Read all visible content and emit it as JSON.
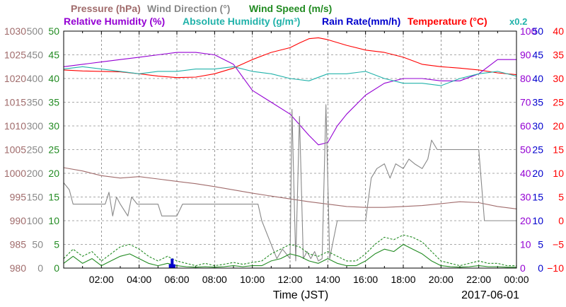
{
  "chart_data": {
    "type": "line",
    "date_label": "2017-06-01",
    "xlabel": "Time (JST)",
    "x_tick_labels": [
      "02:00",
      "04:00",
      "06:00",
      "08:00",
      "10:00",
      "12:00",
      "14:00",
      "16:00",
      "18:00",
      "20:00",
      "22:00",
      "00:00"
    ],
    "x_range_hours": [
      0,
      24
    ],
    "legend_line1": [
      {
        "text": "Pressure (hPa)",
        "color": "#a06b6b"
      },
      {
        "text": "Wind Direction (°)",
        "color": "#888888"
      },
      {
        "text": "Wind Speed (m/s)",
        "color": "#228b22"
      }
    ],
    "legend_line2": [
      {
        "text": "Relative Humidity (%)",
        "color": "#9400d3"
      },
      {
        "text": "Absolute Humidity (g/m³)",
        "color": "#20b2aa"
      },
      {
        "text": "Rain Rate(mm/h)",
        "color": "#0000cd"
      },
      {
        "text": "Temperature (°C)",
        "color": "#ff0000"
      },
      {
        "text": "x0.2",
        "color": "#20b2aa"
      }
    ],
    "axes": {
      "pressure": {
        "color": "#a06b6b",
        "range": [
          980,
          1030
        ],
        "ticks": [
          "980",
          "985",
          "990",
          "995",
          "1000",
          "1005",
          "1010",
          "1015",
          "1020",
          "1025",
          "1030"
        ]
      },
      "wind_direction": {
        "color": "#888888",
        "range": [
          0,
          500
        ],
        "ticks": [
          "0",
          "50",
          "100",
          "150",
          "200",
          "250",
          "300",
          "350",
          "400",
          "450",
          "500"
        ]
      },
      "wind_speed": {
        "color": "#228b22",
        "range": [
          0,
          50
        ],
        "ticks": [
          "0",
          "5",
          "10",
          "15",
          "20",
          "25",
          "30",
          "35",
          "40",
          "45",
          "50"
        ]
      },
      "relative_humidity": {
        "color": "#9400d3",
        "range": [
          0,
          100
        ],
        "ticks": [
          "0",
          "10",
          "20",
          "30",
          "40",
          "50",
          "60",
          "70",
          "80",
          "90",
          "100"
        ]
      },
      "rain_rate": {
        "color": "#0000cd",
        "range": [
          0,
          50
        ],
        "ticks": [
          "0",
          "5",
          "10",
          "15",
          "20",
          "25",
          "30",
          "35",
          "40",
          "45",
          "50"
        ]
      },
      "temperature": {
        "color": "#ff0000",
        "range": [
          -10,
          40
        ],
        "ticks": [
          "−10",
          "−5",
          "0",
          "5",
          "10",
          "15",
          "20",
          "25",
          "30",
          "35",
          "40"
        ]
      }
    },
    "grid": true,
    "series": [
      {
        "name": "Temperature (°C)",
        "color": "#ff0000",
        "axis": "temperature",
        "x": [
          0,
          1,
          2,
          3,
          4,
          5,
          6,
          7,
          8,
          9,
          10,
          11,
          12,
          12.5,
          13,
          13.5,
          14,
          15,
          16,
          17,
          18,
          19,
          20,
          21,
          22,
          23,
          24
        ],
        "y": [
          31.8,
          31.6,
          31.5,
          31.4,
          31.0,
          30.5,
          30.2,
          30.3,
          31.0,
          32.2,
          34.0,
          35.5,
          36.5,
          37.5,
          38.4,
          38.6,
          38.2,
          37.0,
          36.0,
          35.5,
          34.5,
          33.0,
          32.5,
          32.2,
          31.8,
          31.2,
          30.8
        ]
      },
      {
        "name": "Relative Humidity (%)",
        "color": "#9400d3",
        "axis": "relative_humidity",
        "x": [
          0,
          1,
          2,
          3,
          4,
          5,
          6,
          7,
          8,
          9,
          10,
          11,
          12,
          13,
          13.5,
          14,
          14.5,
          15,
          16,
          17,
          18,
          19,
          20,
          21,
          22,
          23,
          24
        ],
        "y": [
          85,
          86,
          87,
          88,
          89,
          90,
          91,
          91,
          90,
          86,
          75,
          70,
          65,
          56,
          52,
          53,
          60,
          65,
          73,
          78,
          80,
          80,
          79,
          79,
          82,
          88,
          88
        ]
      },
      {
        "name": "Absolute Humidity (g/m³)",
        "color": "#20b2aa",
        "axis": "wind_speed",
        "x": [
          0,
          1,
          2,
          3,
          4,
          5,
          6,
          7,
          8,
          9,
          10,
          11,
          12,
          13,
          14,
          15,
          16,
          17,
          18,
          19,
          20,
          21,
          22,
          23,
          24
        ],
        "y": [
          42.0,
          42.5,
          42.0,
          41.5,
          41.0,
          41.5,
          41.5,
          42.0,
          42.0,
          42.5,
          41.5,
          41.0,
          40.0,
          39.5,
          41.0,
          41.0,
          41.5,
          40.0,
          39.0,
          39.0,
          38.5,
          40.0,
          41.0,
          41.5,
          40.5
        ]
      },
      {
        "name": "Pressure (hPa)",
        "color": "#a06b6b",
        "axis": "pressure",
        "x": [
          0,
          1,
          2,
          3,
          4,
          5,
          6,
          7,
          8,
          9,
          10,
          11,
          12,
          13,
          14,
          15,
          16,
          17,
          18,
          19,
          20,
          21,
          22,
          23,
          24
        ],
        "y": [
          1001.2,
          1000.5,
          999.5,
          999.0,
          999.3,
          998.8,
          998.3,
          997.8,
          997.2,
          996.5,
          995.8,
          995.2,
          994.6,
          994.0,
          993.5,
          993.0,
          992.8,
          992.8,
          993.0,
          993.2,
          993.6,
          994.0,
          993.8,
          993.0,
          992.5
        ]
      },
      {
        "name": "Wind Direction (°)",
        "color": "#888888",
        "axis": "wind_direction",
        "x": [
          0,
          0.3,
          0.5,
          1.2,
          2.2,
          2.4,
          2.6,
          2.8,
          3.0,
          3.4,
          3.6,
          3.9,
          4.1,
          5.0,
          5.2,
          6.0,
          6.3,
          10.3,
          10.5,
          11.0,
          11.3,
          11.6,
          12.0,
          12.1,
          12.3,
          12.5,
          12.7,
          12.9,
          13.1,
          13.3,
          13.5,
          13.7,
          13.9,
          14.1,
          14.3,
          14.5,
          14.8,
          16.0,
          16.3,
          16.6,
          17.0,
          17.3,
          17.6,
          18.0,
          18.3,
          18.6,
          19.0,
          19.3,
          19.5,
          19.8,
          20.0,
          21.0,
          22.0,
          22.3,
          22.6,
          23.0,
          24.0
        ],
        "y": [
          180,
          165,
          135,
          135,
          135,
          160,
          110,
          150,
          135,
          110,
          150,
          135,
          135,
          135,
          110,
          110,
          135,
          135,
          100,
          50,
          20,
          40,
          20,
          335,
          15,
          320,
          20,
          35,
          20,
          35,
          15,
          20,
          345,
          20,
          60,
          100,
          100,
          100,
          190,
          210,
          220,
          190,
          220,
          210,
          230,
          220,
          210,
          230,
          270,
          250,
          250,
          250,
          250,
          100,
          100,
          100,
          100
        ]
      },
      {
        "name": "Wind Speed (m/s)",
        "color": "#228b22",
        "axis": "wind_speed",
        "x": [
          0,
          0.5,
          1,
          1.5,
          2,
          2.5,
          3,
          3.5,
          4,
          4.5,
          5,
          5.5,
          6,
          6.5,
          7,
          7.5,
          8,
          8.5,
          9,
          9.5,
          10,
          10.5,
          11,
          11.5,
          12,
          12.5,
          13,
          13.5,
          14,
          14.5,
          15,
          15.5,
          16,
          16.5,
          17,
          17.5,
          18,
          18.5,
          19,
          19.5,
          20,
          20.5,
          21,
          21.5,
          22,
          22.5,
          23,
          23.5,
          24
        ],
        "y": [
          1,
          2.5,
          1,
          2,
          0.5,
          1.5,
          2.5,
          3,
          2,
          1,
          0.5,
          1,
          0.5,
          0.3,
          0.2,
          0.3,
          0.2,
          0.3,
          0.5,
          0.3,
          0.5,
          0.5,
          1.5,
          2,
          3,
          2.5,
          1.5,
          1,
          2,
          1,
          0.5,
          0.5,
          1.5,
          3,
          4,
          3.5,
          5,
          4,
          3,
          1.5,
          0.5,
          0.3,
          0.2,
          0.3,
          0.5,
          0.3,
          0.3,
          0.2,
          0.2
        ]
      },
      {
        "name": "Wind Speed gust (m/s)",
        "color": "#228b22",
        "axis": "wind_speed",
        "dashed": true,
        "x": [
          0,
          0.5,
          1,
          1.5,
          2,
          2.5,
          3,
          3.5,
          4,
          4.5,
          5,
          5.5,
          6,
          6.5,
          7,
          7.5,
          8,
          8.5,
          9,
          9.5,
          10,
          10.5,
          11,
          11.5,
          12,
          12.5,
          13,
          13.5,
          14,
          14.5,
          15,
          15.5,
          16,
          16.5,
          17,
          17.5,
          18,
          18.5,
          19,
          19.5,
          20,
          20.5,
          21,
          21.5,
          22,
          22.5,
          23,
          23.5,
          24
        ],
        "y": [
          2,
          4,
          2.5,
          3.5,
          1.5,
          3,
          4.5,
          5,
          4,
          2.5,
          1.5,
          2.5,
          1.5,
          1,
          0.5,
          1,
          0.5,
          0.8,
          1.2,
          0.8,
          1.2,
          1.5,
          3,
          4,
          5,
          4.5,
          3,
          2.5,
          3.5,
          2.5,
          1.5,
          1.5,
          3,
          5,
          6.5,
          6,
          7,
          6.5,
          5.5,
          3.5,
          1.5,
          1,
          0.5,
          1,
          1.5,
          1,
          1,
          0.5,
          0.5
        ]
      },
      {
        "name": "Rain Rate(mm/h)",
        "color": "#0000cd",
        "axis": "rain_rate",
        "type": "bar",
        "x": [
          5.65,
          5.75,
          5.85
        ],
        "y": [
          0.8,
          2.0,
          0.8
        ]
      }
    ]
  }
}
